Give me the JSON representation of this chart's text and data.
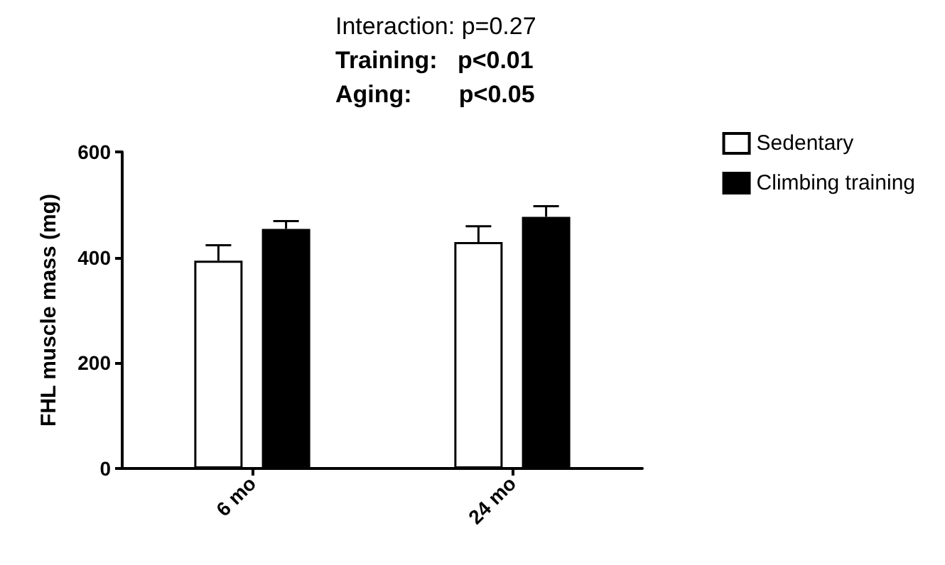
{
  "chart_data": {
    "type": "bar",
    "ylabel": "FHL muscle mass (mg)",
    "categories": [
      "6 mo",
      "24 mo"
    ],
    "series": [
      {
        "name": "Sedentary",
        "color": "#ffffff",
        "values": [
          394,
          429
        ],
        "errors": [
          [
            394,
            423
          ],
          [
            429,
            459
          ]
        ]
      },
      {
        "name": "Climbing training",
        "color": "#000000",
        "values": [
          454,
          477
        ],
        "errors": [
          [
            454,
            469
          ],
          [
            477,
            497
          ]
        ]
      }
    ],
    "ylim": [
      0,
      600
    ],
    "yticks": [
      0,
      200,
      400,
      600
    ],
    "grid": false,
    "legend": "top right",
    "annotations": [
      "Interaction: p=0.27",
      "Training:   p<0.01",
      "Aging:       p<0.05"
    ]
  }
}
